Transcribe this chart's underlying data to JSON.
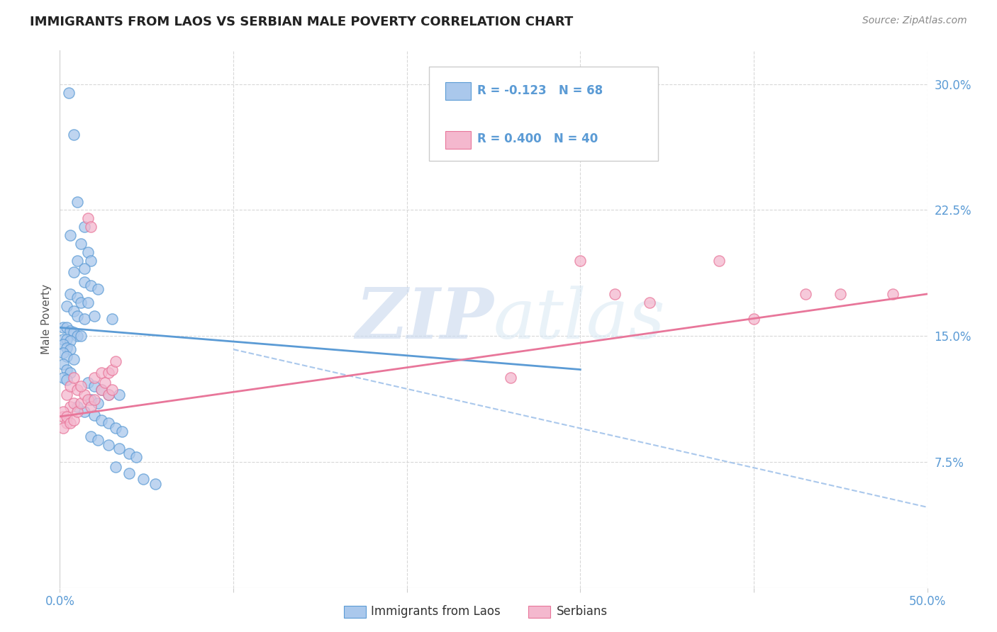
{
  "title": "IMMIGRANTS FROM LAOS VS SERBIAN MALE POVERTY CORRELATION CHART",
  "source": "Source: ZipAtlas.com",
  "ylabel": "Male Poverty",
  "xlim": [
    0.0,
    0.5
  ],
  "ylim": [
    0.0,
    0.32
  ],
  "xticks": [
    0.0,
    0.1,
    0.2,
    0.3,
    0.4,
    0.5
  ],
  "xtick_labels": [
    "0.0%",
    "",
    "",
    "",
    "",
    "50.0%"
  ],
  "ytick_labels_right": [
    "",
    "7.5%",
    "15.0%",
    "22.5%",
    "30.0%"
  ],
  "yticks_right": [
    0.0,
    0.075,
    0.15,
    0.225,
    0.3
  ],
  "legend_r_laos": "R = -0.123",
  "legend_n_laos": "N = 68",
  "legend_r_serbian": "R = 0.400",
  "legend_n_serbian": "N = 40",
  "color_laos": "#aac8ec",
  "color_serbian": "#f4b8ce",
  "color_laos_line": "#5b9bd5",
  "color_serbian_line": "#e8769a",
  "color_dashed": "#aac8ec",
  "watermark_zip": "ZIP",
  "watermark_atlas": "atlas",
  "bg_color": "#ffffff",
  "grid_color": "#d8d8d8",
  "title_color": "#222222",
  "tick_color": "#5b9bd5",
  "blue_dots": [
    [
      0.005,
      0.295
    ],
    [
      0.008,
      0.27
    ],
    [
      0.01,
      0.23
    ],
    [
      0.014,
      0.215
    ],
    [
      0.012,
      0.205
    ],
    [
      0.016,
      0.2
    ],
    [
      0.01,
      0.195
    ],
    [
      0.018,
      0.195
    ],
    [
      0.006,
      0.21
    ],
    [
      0.014,
      0.19
    ],
    [
      0.008,
      0.188
    ],
    [
      0.014,
      0.182
    ],
    [
      0.018,
      0.18
    ],
    [
      0.022,
      0.178
    ],
    [
      0.006,
      0.175
    ],
    [
      0.01,
      0.173
    ],
    [
      0.012,
      0.17
    ],
    [
      0.016,
      0.17
    ],
    [
      0.004,
      0.168
    ],
    [
      0.008,
      0.165
    ],
    [
      0.01,
      0.162
    ],
    [
      0.014,
      0.16
    ],
    [
      0.02,
      0.162
    ],
    [
      0.03,
      0.16
    ],
    [
      0.002,
      0.155
    ],
    [
      0.004,
      0.155
    ],
    [
      0.006,
      0.153
    ],
    [
      0.008,
      0.152
    ],
    [
      0.01,
      0.15
    ],
    [
      0.012,
      0.15
    ],
    [
      0.002,
      0.148
    ],
    [
      0.004,
      0.148
    ],
    [
      0.006,
      0.147
    ],
    [
      0.002,
      0.145
    ],
    [
      0.004,
      0.143
    ],
    [
      0.006,
      0.142
    ],
    [
      0.002,
      0.14
    ],
    [
      0.004,
      0.138
    ],
    [
      0.008,
      0.136
    ],
    [
      0.002,
      0.133
    ],
    [
      0.004,
      0.13
    ],
    [
      0.006,
      0.128
    ],
    [
      0.002,
      0.125
    ],
    [
      0.004,
      0.124
    ],
    [
      0.016,
      0.122
    ],
    [
      0.02,
      0.12
    ],
    [
      0.024,
      0.118
    ],
    [
      0.028,
      0.115
    ],
    [
      0.034,
      0.115
    ],
    [
      0.018,
      0.112
    ],
    [
      0.022,
      0.11
    ],
    [
      0.01,
      0.108
    ],
    [
      0.014,
      0.105
    ],
    [
      0.02,
      0.103
    ],
    [
      0.024,
      0.1
    ],
    [
      0.028,
      0.098
    ],
    [
      0.032,
      0.095
    ],
    [
      0.036,
      0.093
    ],
    [
      0.018,
      0.09
    ],
    [
      0.022,
      0.088
    ],
    [
      0.028,
      0.085
    ],
    [
      0.034,
      0.083
    ],
    [
      0.04,
      0.08
    ],
    [
      0.044,
      0.078
    ],
    [
      0.032,
      0.072
    ],
    [
      0.04,
      0.068
    ],
    [
      0.048,
      0.065
    ],
    [
      0.055,
      0.062
    ]
  ],
  "pink_dots": [
    [
      0.002,
      0.102
    ],
    [
      0.004,
      0.098
    ],
    [
      0.006,
      0.108
    ],
    [
      0.004,
      0.115
    ],
    [
      0.006,
      0.12
    ],
    [
      0.008,
      0.11
    ],
    [
      0.01,
      0.118
    ],
    [
      0.002,
      0.105
    ],
    [
      0.004,
      0.102
    ],
    [
      0.002,
      0.095
    ],
    [
      0.006,
      0.098
    ],
    [
      0.008,
      0.1
    ],
    [
      0.01,
      0.105
    ],
    [
      0.012,
      0.11
    ],
    [
      0.014,
      0.115
    ],
    [
      0.008,
      0.125
    ],
    [
      0.016,
      0.112
    ],
    [
      0.012,
      0.12
    ],
    [
      0.018,
      0.108
    ],
    [
      0.02,
      0.112
    ],
    [
      0.02,
      0.125
    ],
    [
      0.024,
      0.118
    ],
    [
      0.024,
      0.128
    ],
    [
      0.026,
      0.122
    ],
    [
      0.028,
      0.128
    ],
    [
      0.03,
      0.13
    ],
    [
      0.028,
      0.115
    ],
    [
      0.03,
      0.118
    ],
    [
      0.016,
      0.22
    ],
    [
      0.018,
      0.215
    ],
    [
      0.032,
      0.135
    ],
    [
      0.26,
      0.125
    ],
    [
      0.3,
      0.195
    ],
    [
      0.32,
      0.175
    ],
    [
      0.34,
      0.17
    ],
    [
      0.38,
      0.195
    ],
    [
      0.4,
      0.16
    ],
    [
      0.43,
      0.175
    ],
    [
      0.45,
      0.175
    ],
    [
      0.48,
      0.175
    ]
  ],
  "blue_line_x": [
    0.0,
    0.3
  ],
  "blue_line_y": [
    0.155,
    0.13
  ],
  "pink_line_x": [
    0.0,
    0.5
  ],
  "pink_line_y": [
    0.102,
    0.175
  ],
  "dashed_line_x": [
    0.1,
    0.5
  ],
  "dashed_line_y": [
    0.142,
    0.048
  ]
}
